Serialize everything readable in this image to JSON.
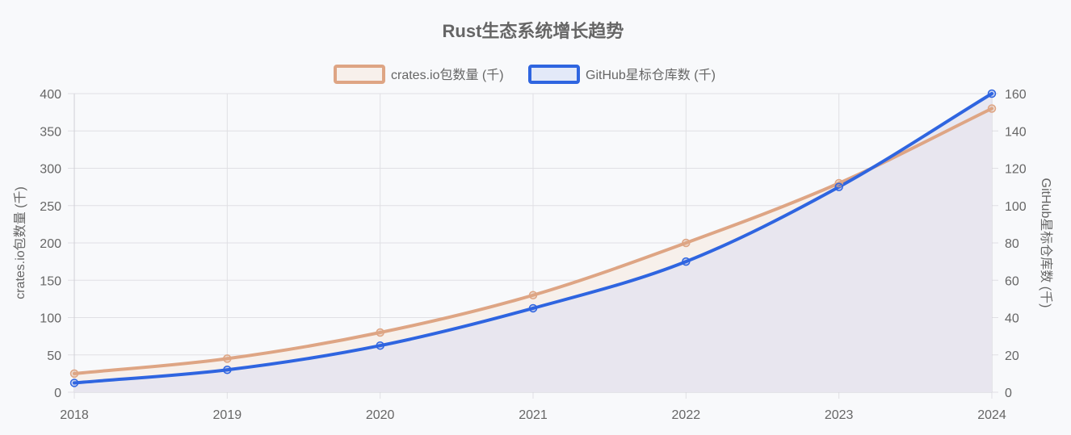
{
  "chart_data": {
    "type": "line",
    "title": "Rust生态系统增长趋势",
    "categories": [
      "2018",
      "2019",
      "2020",
      "2021",
      "2022",
      "2023",
      "2024"
    ],
    "series": [
      {
        "name": "crates.io包数量 (千)",
        "axis": "left",
        "values": [
          25,
          45,
          80,
          130,
          200,
          280,
          380
        ],
        "color": "#dea584",
        "fill": "#f7f0eb"
      },
      {
        "name": "GitHub星标仓库数 (千)",
        "axis": "right",
        "values": [
          5,
          12,
          25,
          45,
          70,
          110,
          160
        ],
        "color": "#2f65e0",
        "fill": "#e4e4f0"
      }
    ],
    "y_left": {
      "label": "crates.io包数量 (千)",
      "range": [
        0,
        400
      ],
      "ticks": [
        "0",
        "50",
        "100",
        "150",
        "200",
        "250",
        "300",
        "350",
        "400"
      ]
    },
    "y_right": {
      "label": "GitHub星标仓库数 (千)",
      "range": [
        0,
        160
      ],
      "ticks": [
        "0",
        "20",
        "40",
        "60",
        "80",
        "100",
        "120",
        "140",
        "160"
      ]
    },
    "grid": true,
    "legend_position": "top-center",
    "colors": {
      "grid": "#e0e0e4",
      "text": "#666666",
      "background": "#f8f9fb"
    }
  }
}
